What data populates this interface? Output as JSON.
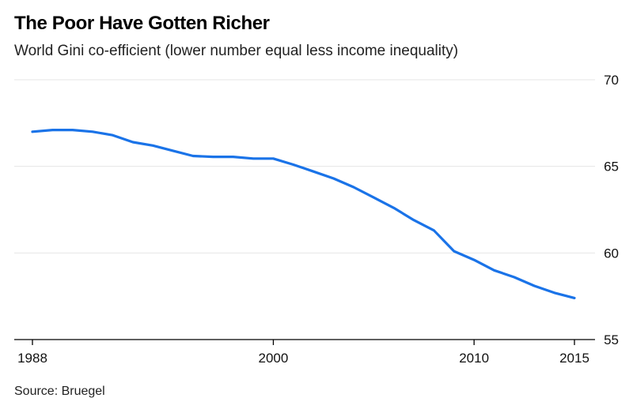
{
  "header": {
    "title": "The Poor Have Gotten Richer",
    "subtitle": "World Gini co-efficient (lower number equal less income inequality)"
  },
  "footer": {
    "source": "Source: Bruegel"
  },
  "colors": {
    "line": "#1a73e8",
    "grid": "#e6e6e6",
    "axis": "#000000"
  },
  "chart_data": {
    "type": "line",
    "title": "The Poor Have Gotten Richer",
    "subtitle": "World Gini co-efficient (lower number equal less income inequality)",
    "xlabel": "",
    "ylabel": "",
    "xlim": [
      1988,
      2015
    ],
    "ylim": [
      55,
      70
    ],
    "x_ticks": [
      1988,
      2000,
      2010,
      2015
    ],
    "y_ticks": [
      55,
      60,
      65,
      70
    ],
    "y_axis_side": "right",
    "grid": "horizontal",
    "series": [
      {
        "name": "World Gini co-efficient",
        "x": [
          1988,
          1989,
          1990,
          1991,
          1992,
          1993,
          1994,
          1995,
          1996,
          1997,
          1998,
          1999,
          2000,
          2001,
          2002,
          2003,
          2004,
          2005,
          2006,
          2007,
          2008,
          2009,
          2010,
          2011,
          2012,
          2013,
          2014,
          2015
        ],
        "values": [
          67.0,
          67.1,
          67.1,
          67.0,
          66.8,
          66.4,
          66.2,
          65.9,
          65.6,
          65.55,
          65.55,
          65.45,
          65.45,
          65.1,
          64.7,
          64.3,
          63.8,
          63.2,
          62.6,
          61.9,
          61.3,
          60.1,
          59.6,
          59.0,
          58.6,
          58.1,
          57.7,
          57.4
        ]
      }
    ],
    "source": "Source: Bruegel"
  }
}
